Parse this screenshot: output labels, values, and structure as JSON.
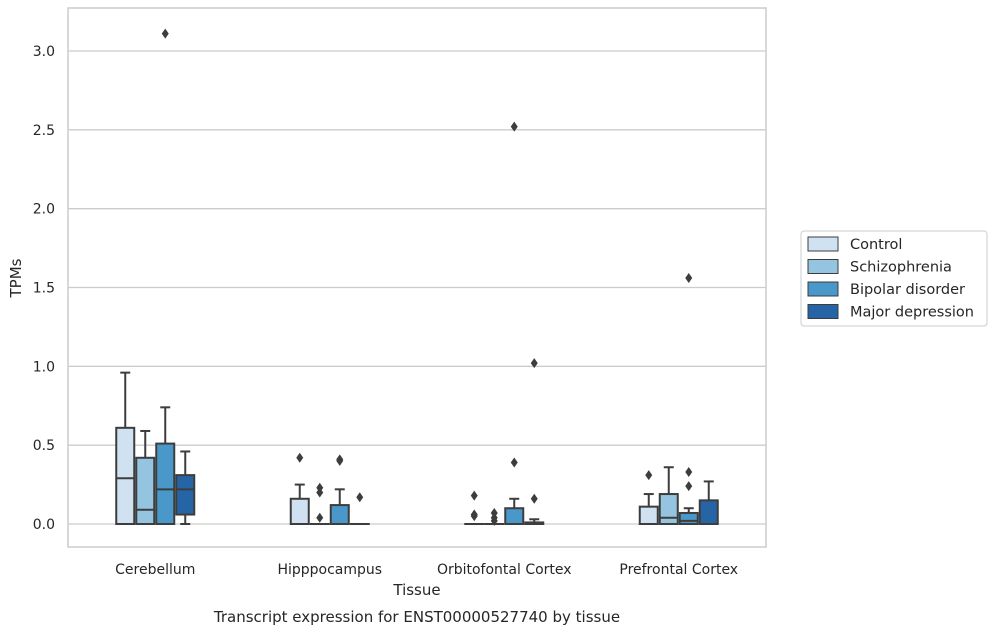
{
  "chart_data": {
    "type": "box",
    "title": "",
    "caption": "Transcript expression for ENST00000527740 by tissue",
    "xlabel": "Tissue",
    "ylabel": "TPMs",
    "ylim": [
      -0.15,
      3.28
    ],
    "yticks": [
      0.0,
      0.5,
      1.0,
      1.5,
      2.0,
      2.5,
      3.0
    ],
    "ytick_labels": [
      "0.0",
      "0.5",
      "1.0",
      "1.5",
      "2.0",
      "2.5",
      "3.0"
    ],
    "grid": "horizontal",
    "legend_position": "right",
    "categories": [
      "Cerebellum",
      "Hipppocampus",
      "Orbitofontal Cortex",
      "Prefrontal Cortex"
    ],
    "series": [
      {
        "name": "Control",
        "color": "#d0e1f2",
        "boxes": [
          {
            "whislo": 0.0,
            "q1": 0.0,
            "med": 0.29,
            "q3": 0.61,
            "whishi": 0.96,
            "fliers": []
          },
          {
            "whislo": 0.0,
            "q1": 0.0,
            "med": 0.0,
            "q3": 0.16,
            "whishi": 0.25,
            "fliers": [
              0.42
            ]
          },
          {
            "whislo": 0.0,
            "q1": 0.0,
            "med": 0.0,
            "q3": 0.0,
            "whishi": 0.0,
            "fliers": [
              0.18,
              0.06,
              0.05
            ]
          },
          {
            "whislo": 0.0,
            "q1": 0.0,
            "med": 0.0,
            "q3": 0.11,
            "whishi": 0.19,
            "fliers": [
              0.31
            ]
          }
        ]
      },
      {
        "name": "Schizophrenia",
        "color": "#94c4df",
        "boxes": [
          {
            "whislo": 0.0,
            "q1": 0.0,
            "med": 0.09,
            "q3": 0.42,
            "whishi": 0.59,
            "fliers": []
          },
          {
            "whislo": 0.0,
            "q1": 0.0,
            "med": 0.0,
            "q3": 0.0,
            "whishi": 0.0,
            "fliers": [
              0.23,
              0.2,
              0.04
            ]
          },
          {
            "whislo": 0.0,
            "q1": 0.0,
            "med": 0.0,
            "q3": 0.0,
            "whishi": 0.0,
            "fliers": [
              0.07,
              0.04,
              0.02
            ]
          },
          {
            "whislo": 0.0,
            "q1": 0.0,
            "med": 0.04,
            "q3": 0.19,
            "whishi": 0.36,
            "fliers": []
          }
        ]
      },
      {
        "name": "Bipolar disorder",
        "color": "#4a98c9",
        "boxes": [
          {
            "whislo": 0.0,
            "q1": 0.0,
            "med": 0.22,
            "q3": 0.51,
            "whishi": 0.74,
            "fliers": [
              3.11
            ]
          },
          {
            "whislo": 0.0,
            "q1": 0.0,
            "med": 0.0,
            "q3": 0.12,
            "whishi": 0.22,
            "fliers": [
              0.41,
              0.4
            ]
          },
          {
            "whislo": 0.0,
            "q1": 0.0,
            "med": 0.0,
            "q3": 0.1,
            "whishi": 0.16,
            "fliers": [
              0.39,
              2.52
            ]
          },
          {
            "whislo": 0.0,
            "q1": 0.0,
            "med": 0.02,
            "q3": 0.07,
            "whishi": 0.1,
            "fliers": [
              0.33,
              0.24,
              1.56
            ]
          }
        ]
      },
      {
        "name": "Major depression",
        "color": "#2565a6",
        "boxes": [
          {
            "whislo": 0.0,
            "q1": 0.06,
            "med": 0.22,
            "q3": 0.31,
            "whishi": 0.46,
            "fliers": []
          },
          {
            "whislo": 0.0,
            "q1": 0.0,
            "med": 0.0,
            "q3": 0.0,
            "whishi": 0.0,
            "fliers": [
              0.17
            ]
          },
          {
            "whislo": 0.0,
            "q1": 0.0,
            "med": 0.0,
            "q3": 0.01,
            "whishi": 0.03,
            "fliers": [
              0.16,
              1.02
            ]
          },
          {
            "whislo": 0.0,
            "q1": 0.0,
            "med": 0.0,
            "q3": 0.15,
            "whishi": 0.27,
            "fliers": []
          }
        ]
      }
    ]
  }
}
